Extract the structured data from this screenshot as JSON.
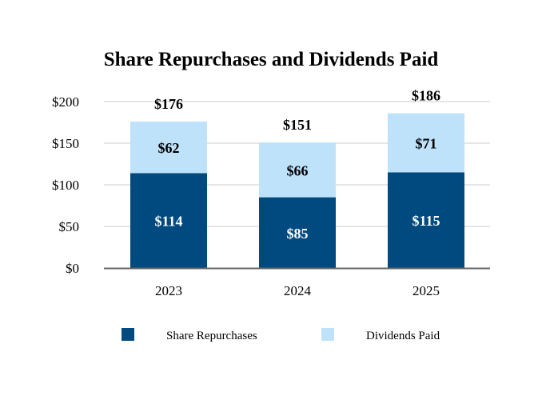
{
  "chart_data": {
    "type": "bar",
    "stacked": true,
    "title": "Share Repurchases and Dividends Paid",
    "xlabel": "",
    "ylabel": "",
    "categories": [
      "2023",
      "2024",
      "2025"
    ],
    "ylim": [
      0,
      200
    ],
    "yticks": [
      0,
      50,
      100,
      150,
      200
    ],
    "ytick_labels": [
      "$0",
      "$50",
      "$100",
      "$150",
      "$200"
    ],
    "grid": true,
    "legend_position": "bottom",
    "series": [
      {
        "name": "Share Repurchases",
        "values": [
          114,
          85,
          115
        ],
        "labels": [
          "$114",
          "$85",
          "$115"
        ],
        "color": "#004a80",
        "label_color": "#ffffff"
      },
      {
        "name": "Dividends Paid",
        "values": [
          62,
          66,
          71
        ],
        "labels": [
          "$62",
          "$66",
          "$71"
        ],
        "color": "#bfe2fb",
        "label_color": "#000000"
      }
    ],
    "totals": [
      176,
      151,
      186
    ],
    "total_labels": [
      "$176",
      "$151",
      "$186"
    ]
  }
}
